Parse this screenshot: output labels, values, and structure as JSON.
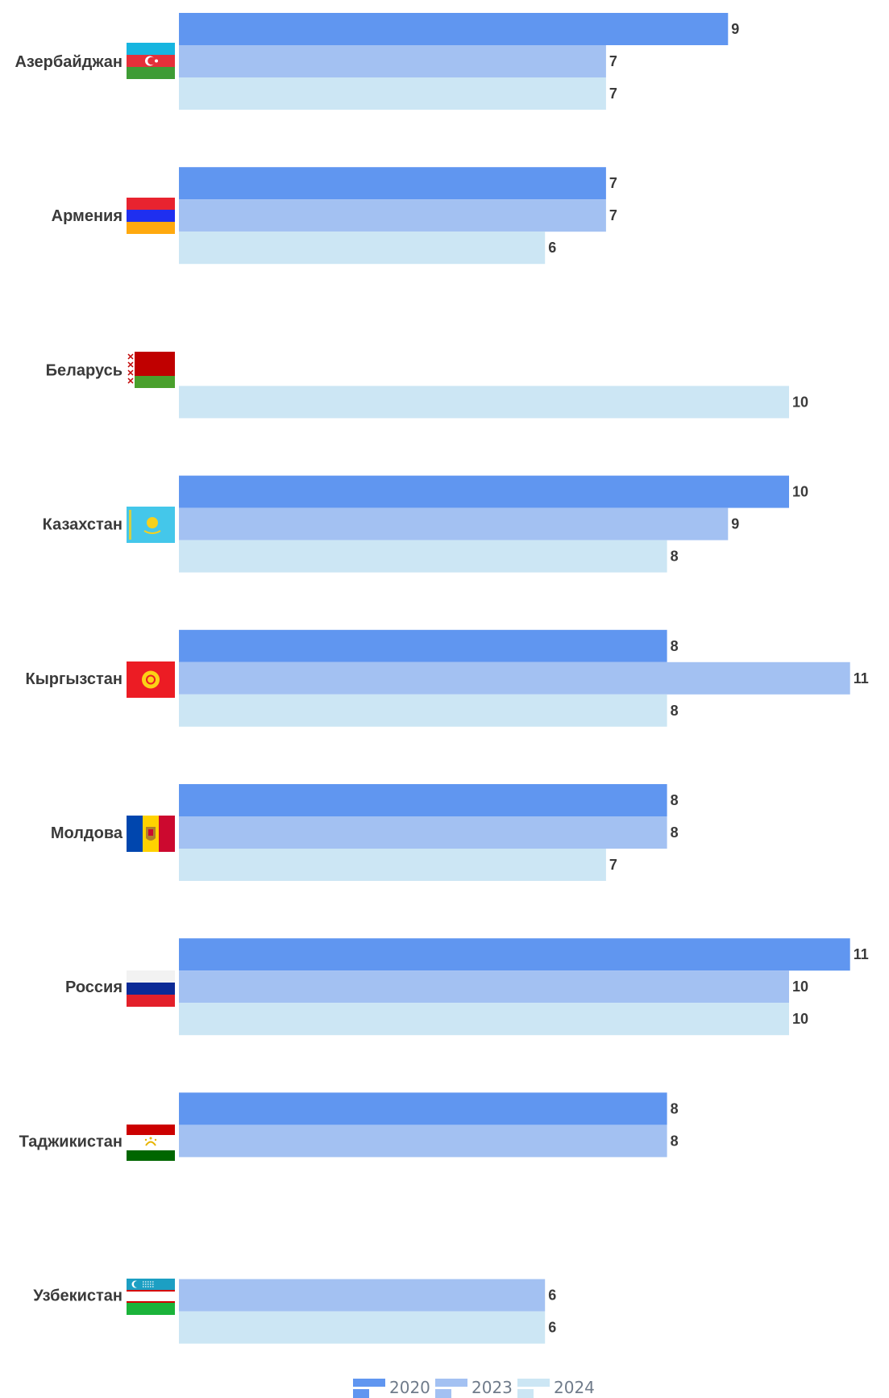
{
  "chart_data": {
    "type": "bar",
    "orientation": "horizontal",
    "categories": [
      "Азербайджан",
      "Армения",
      "Беларусь",
      "Казахстан",
      "Кыргызстан",
      "Молдова",
      "Россия",
      "Таджикистан",
      "Узбекистан"
    ],
    "flag_icons": [
      "azerbaijan-flag-icon",
      "armenia-flag-icon",
      "belarus-flag-icon",
      "kazakhstan-flag-icon",
      "kyrgyzstan-flag-icon",
      "moldova-flag-icon",
      "russia-flag-icon",
      "tajikistan-flag-icon",
      "uzbekistan-flag-icon"
    ],
    "series": [
      {
        "name": "2020",
        "color": "#6096f0",
        "values": [
          9,
          7,
          null,
          10,
          8,
          8,
          11,
          8,
          null
        ]
      },
      {
        "name": "2023",
        "color": "#a3c1f2",
        "values": [
          7,
          7,
          null,
          9,
          11,
          8,
          10,
          8,
          6
        ]
      },
      {
        "name": "2024",
        "color": "#cce6f4",
        "values": [
          7,
          6,
          10,
          8,
          8,
          7,
          10,
          null,
          6
        ]
      }
    ],
    "title": "",
    "xlabel": "",
    "ylabel": "",
    "xlim": [
      0,
      11
    ],
    "grid": false,
    "legend": "bottom-center"
  }
}
